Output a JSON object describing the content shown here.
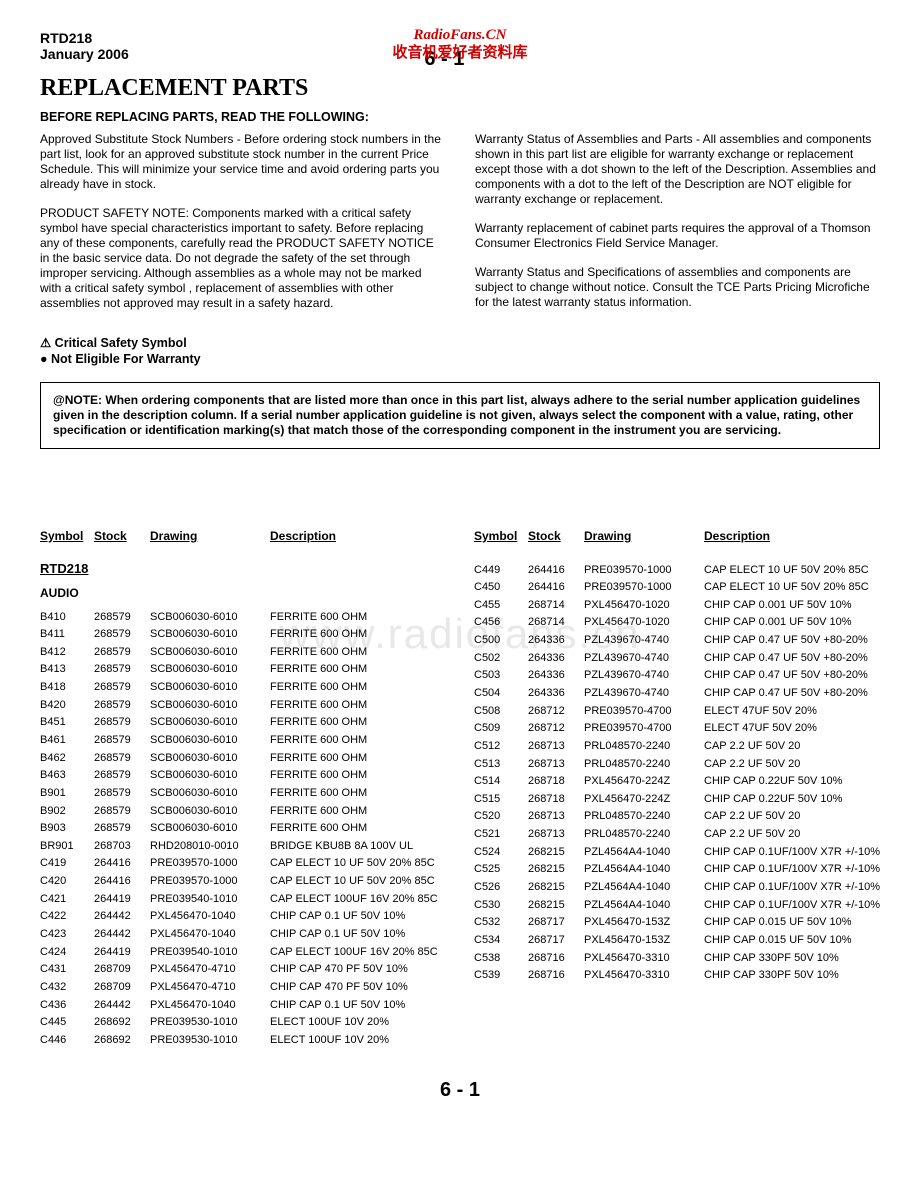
{
  "watermark_top_line1": "RadioFans.CN",
  "watermark_top_line2": "收音机爱好者资料库",
  "watermark_center": "www.radiofans.cn",
  "header": {
    "model": "RTD218",
    "date": "January    2006",
    "page_num": "6 - 1"
  },
  "title": "REPLACEMENT PARTS",
  "subheader": "BEFORE REPLACING PARTS, READ THE FOLLOWING:",
  "left_paras": [
    "Approved Substitute Stock Numbers - Before ordering stock numbers in the part list, look for an approved substitute stock number in the current Price Schedule.  This will minimize your service time and avoid ordering parts you already have in stock.",
    "PRODUCT SAFETY NOTE:   Components marked with a critical safety symbol have special characteristics important to safety.  Before replacing any of these components, carefully read the PRODUCT SAFETY NOTICE in the basic service data.  Do not degrade the safety of the set through improper servicing.  Although assemblies as a whole may not be marked with a critical safety symbol , replacement of assemblies with other assemblies not approved may result in a safety hazard."
  ],
  "right_paras": [
    "Warranty Status of Assemblies and Parts - All assemblies and components shown in this part list are eligible for warranty exchange or replacement except those with a dot shown to the left of the Description.  Assemblies and components with a dot to the left of the Description are NOT eligible for warranty exchange or replacement.",
    "Warranty replacement of cabinet parts requires the approval of a Thomson Consumer Electronics Field Service Manager.",
    "Warranty Status and Specifications of assemblies and components are subject to change without notice.  Consult the TCE Parts Pricing Microfiche for the latest warranty status information."
  ],
  "legend": {
    "critical": "⚠ Critical Safety Symbol",
    "noteligible": "● Not Eligible For Warranty"
  },
  "note_box": "@NOTE:  When ordering components that are listed more than once in this part list, always adhere to the serial number application guidelines given in the description column.  If a serial number application guideline is not given, always select the component with a value, rating, other specification or identification marking(s) that match those of the corresponding component in the instrument you are servicing.",
  "table_headers": {
    "sym": "Symbol",
    "stk": "Stock",
    "drw": "Drawing",
    "dsc": "Description"
  },
  "left_table": {
    "subtitle": "RTD218",
    "subcat": "AUDIO",
    "rows": [
      [
        "B410",
        "268579",
        "SCB006030-6010",
        "FERRITE 600 OHM"
      ],
      [
        "B411",
        "268579",
        "SCB006030-6010",
        "FERRITE 600 OHM"
      ],
      [
        "B412",
        "268579",
        "SCB006030-6010",
        "FERRITE 600 OHM"
      ],
      [
        "B413",
        "268579",
        "SCB006030-6010",
        "FERRITE 600 OHM"
      ],
      [
        "B418",
        "268579",
        "SCB006030-6010",
        "FERRITE 600 OHM"
      ],
      [
        "B420",
        "268579",
        "SCB006030-6010",
        "FERRITE 600 OHM"
      ],
      [
        "B451",
        "268579",
        "SCB006030-6010",
        "FERRITE 600 OHM"
      ],
      [
        "B461",
        "268579",
        "SCB006030-6010",
        "FERRITE 600 OHM"
      ],
      [
        "B462",
        "268579",
        "SCB006030-6010",
        "FERRITE 600 OHM"
      ],
      [
        "B463",
        "268579",
        "SCB006030-6010",
        "FERRITE 600 OHM"
      ],
      [
        "B901",
        "268579",
        "SCB006030-6010",
        "FERRITE 600 OHM"
      ],
      [
        "B902",
        "268579",
        "SCB006030-6010",
        "FERRITE 600 OHM"
      ],
      [
        "B903",
        "268579",
        "SCB006030-6010",
        "FERRITE 600 OHM"
      ],
      [
        "BR901",
        "268703",
        "RHD208010-0010",
        "BRIDGE KBU8B 8A 100V UL"
      ],
      [
        "C419",
        "264416",
        "PRE039570-1000",
        "CAP ELECT 10 UF 50V 20% 85C"
      ],
      [
        "C420",
        "264416",
        "PRE039570-1000",
        "CAP ELECT 10 UF 50V 20% 85C"
      ],
      [
        "C421",
        "264419",
        "PRE039540-1010",
        "CAP ELECT 100UF 16V 20% 85C"
      ],
      [
        "C422",
        "264442",
        "PXL456470-1040",
        "CHIP CAP 0.1 UF 50V 10%"
      ],
      [
        "C423",
        "264442",
        "PXL456470-1040",
        "CHIP CAP 0.1 UF 50V 10%"
      ],
      [
        "C424",
        "264419",
        "PRE039540-1010",
        "CAP ELECT 100UF 16V 20% 85C"
      ],
      [
        "C431",
        "268709",
        "PXL456470-4710",
        "CHIP CAP 470 PF 50V 10%"
      ],
      [
        "C432",
        "268709",
        "PXL456470-4710",
        "CHIP CAP 470 PF 50V 10%"
      ],
      [
        "C436",
        "264442",
        "PXL456470-1040",
        "CHIP CAP 0.1 UF 50V 10%"
      ],
      [
        "C445",
        "268692",
        "PRE039530-1010",
        "ELECT 100UF  10V    20%"
      ],
      [
        "C446",
        "268692",
        "PRE039530-1010",
        "ELECT 100UF  10V    20%"
      ]
    ]
  },
  "right_table": {
    "rows": [
      [
        "C449",
        "264416",
        "PRE039570-1000",
        "CAP ELECT 10 UF 50V 20% 85C"
      ],
      [
        "C450",
        "264416",
        "PRE039570-1000",
        "CAP ELECT 10 UF 50V 20% 85C"
      ],
      [
        "C455",
        "268714",
        "PXL456470-1020",
        "CHIP CAP   0.001 UF 50V 10%"
      ],
      [
        "C456",
        "268714",
        "PXL456470-1020",
        "CHIP CAP   0.001 UF 50V 10%"
      ],
      [
        "C500",
        "264336",
        "PZL439670-4740",
        "CHIP CAP 0.47 UF 50V +80-20%"
      ],
      [
        "C502",
        "264336",
        "PZL439670-4740",
        "CHIP CAP 0.47 UF 50V +80-20%"
      ],
      [
        "C503",
        "264336",
        "PZL439670-4740",
        "CHIP CAP 0.47 UF 50V +80-20%"
      ],
      [
        "C504",
        "264336",
        "PZL439670-4740",
        "CHIP CAP 0.47 UF 50V +80-20%"
      ],
      [
        "C508",
        "268712",
        "PRE039570-4700",
        "ELECT 47UF  50V     20%"
      ],
      [
        "C509",
        "268712",
        "PRE039570-4700",
        "ELECT 47UF  50V     20%"
      ],
      [
        "C512",
        "268713",
        "PRL048570-2240",
        "CAP 2.2  UF  50V    20"
      ],
      [
        "C513",
        "268713",
        "PRL048570-2240",
        "CAP 2.2  UF  50V    20"
      ],
      [
        "C514",
        "268718",
        "PXL456470-224Z",
        "CHIP CAP  0.22UF 50V 10%"
      ],
      [
        "C515",
        "268718",
        "PXL456470-224Z",
        "CHIP CAP  0.22UF 50V 10%"
      ],
      [
        "C520",
        "268713",
        "PRL048570-2240",
        "CAP 2.2  UF  50V    20"
      ],
      [
        "C521",
        "268713",
        "PRL048570-2240",
        "CAP 2.2  UF  50V    20"
      ],
      [
        "C524",
        "268215",
        "PZL4564A4-1040",
        "CHIP CAP 0.1UF/100V X7R +/-10%"
      ],
      [
        "C525",
        "268215",
        "PZL4564A4-1040",
        "CHIP CAP 0.1UF/100V X7R +/-10%"
      ],
      [
        "C526",
        "268215",
        "PZL4564A4-1040",
        "CHIP CAP 0.1UF/100V X7R +/-10%"
      ],
      [
        "C530",
        "268215",
        "PZL4564A4-1040",
        "CHIP CAP 0.1UF/100V X7R +/-10%"
      ],
      [
        "C532",
        "268717",
        "PXL456470-153Z",
        "CHIP CAP   0.015 UF 50V 10%"
      ],
      [
        "C534",
        "268717",
        "PXL456470-153Z",
        "CHIP CAP   0.015 UF 50V 10%"
      ],
      [
        "C538",
        "268716",
        "PXL456470-3310",
        "CHIP CAP 330PF 50V 10%"
      ],
      [
        "C539",
        "268716",
        "PXL456470-3310",
        "CHIP CAP 330PF 50V 10%"
      ]
    ]
  },
  "footer_pn": "6 - 1"
}
